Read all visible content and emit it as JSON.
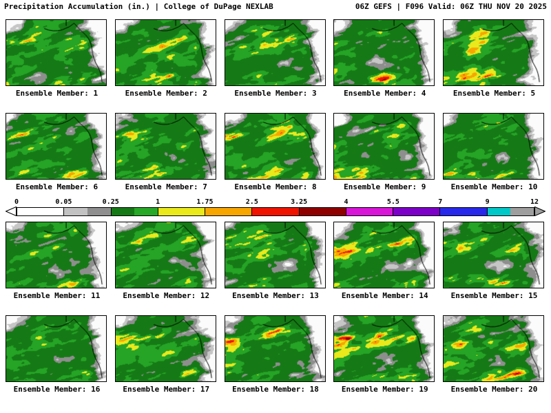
{
  "header": {
    "left": "Precipitation Accumulation (in.) | College of DuPage NEXLAB",
    "right": "06Z GEFS | F096 Valid: 06Z THU NOV 20 2025"
  },
  "colorbar": {
    "ticks": [
      "0",
      "0.05",
      "0.25",
      "1",
      "1.75",
      "2.5",
      "3.25",
      "4",
      "5.5",
      "7",
      "9",
      "12"
    ],
    "segments": [
      [
        "#ffffff"
      ],
      [
        "#c2c2c2",
        "#8f8f8f"
      ],
      [
        "#157a15",
        "#27a827"
      ],
      [
        "#e9e91c"
      ],
      [
        "#f7a600"
      ],
      [
        "#ee1400"
      ],
      [
        "#8f0000"
      ],
      [
        "#d816d8"
      ],
      [
        "#7d00c8"
      ],
      [
        "#2828ea"
      ],
      [
        "#00c8c8",
        "#9e9e9e"
      ]
    ],
    "left_arrow_color": "#ffffff",
    "right_arrow_color": "#9e9e9e"
  },
  "map_palette": {
    "ocean_green": "#1e7d1e",
    "stops": [
      {
        "t": 0.15,
        "c": "#fbfbfb"
      },
      {
        "t": 0.23,
        "c": "#c6c6c6"
      },
      {
        "t": 0.31,
        "c": "#8e8e8e"
      },
      {
        "t": 0.52,
        "c": "#157a15"
      },
      {
        "t": 0.63,
        "c": "#25a425"
      },
      {
        "t": 0.7,
        "c": "#e9e91c"
      },
      {
        "t": 0.76,
        "c": "#f7a600"
      },
      {
        "t": 0.82,
        "c": "#ee1400"
      },
      {
        "t": 0.87,
        "c": "#8f0000"
      },
      {
        "t": 0.91,
        "c": "#d816d8"
      },
      {
        "t": 0.945,
        "c": "#7d00c8"
      },
      {
        "t": 0.975,
        "c": "#2828ea"
      },
      {
        "t": 1.01,
        "c": "#00c8c8"
      }
    ]
  },
  "panels": [
    {
      "label": "Ensemble Member: 1"
    },
    {
      "label": "Ensemble Member: 2"
    },
    {
      "label": "Ensemble Member: 3"
    },
    {
      "label": "Ensemble Member: 4"
    },
    {
      "label": "Ensemble Member: 5"
    },
    {
      "label": "Ensemble Member: 6"
    },
    {
      "label": "Ensemble Member: 7"
    },
    {
      "label": "Ensemble Member: 8"
    },
    {
      "label": "Ensemble Member: 9"
    },
    {
      "label": "Ensemble Member: 10"
    },
    {
      "label": "Ensemble Member: 11"
    },
    {
      "label": "Ensemble Member: 12"
    },
    {
      "label": "Ensemble Member: 13"
    },
    {
      "label": "Ensemble Member: 14"
    },
    {
      "label": "Ensemble Member: 15"
    },
    {
      "label": "Ensemble Member: 16"
    },
    {
      "label": "Ensemble Member: 17"
    },
    {
      "label": "Ensemble Member: 18"
    },
    {
      "label": "Ensemble Member: 19"
    },
    {
      "label": "Ensemble Member: 20"
    }
  ]
}
